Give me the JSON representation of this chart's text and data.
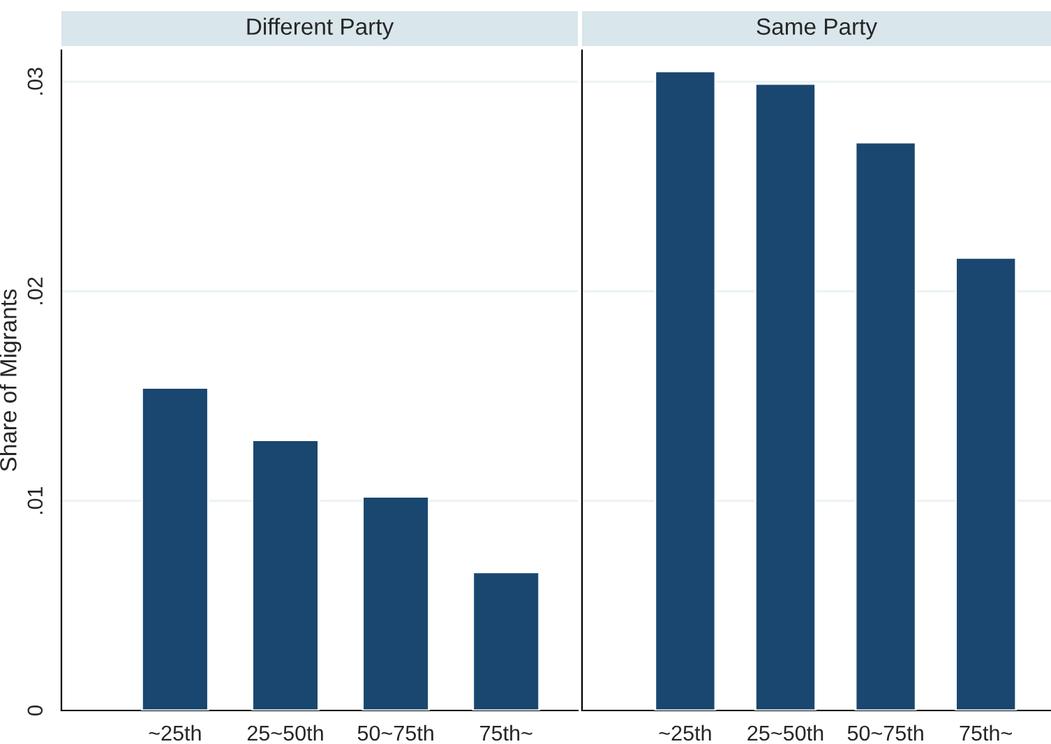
{
  "chart_data": [
    {
      "type": "bar",
      "title": "Different Party",
      "ylabel": "Share of Migrants",
      "categories": [
        "~25th",
        "25~50th",
        "50~75th",
        "75th~"
      ],
      "values": [
        0.0154,
        0.0129,
        0.0102,
        0.0066
      ],
      "color": "#1a476f",
      "ylim": [
        0,
        0.0315
      ],
      "yticks": [
        0,
        {
          "value": 0.01,
          "label": ".01"
        },
        {
          "value": 0.02,
          "label": ".02"
        },
        {
          "value": 0.03,
          "label": ".03"
        }
      ],
      "grid": "y"
    },
    {
      "type": "bar",
      "title": "Same Party",
      "categories": [
        "~25th",
        "25~50th",
        "50~75th",
        "75th~"
      ],
      "values": [
        0.0305,
        0.0299,
        0.0271,
        0.0216
      ],
      "color": "#1a476f",
      "ylim": [
        0,
        0.0315
      ],
      "yticks": [
        {
          "value": 0,
          "label": null
        },
        {
          "value": 0.01,
          "label": null
        },
        {
          "value": 0.02,
          "label": null
        },
        {
          "value": 0.03,
          "label": null
        }
      ],
      "grid": "y",
      "tick_labels": "x"
    }
  ]
}
